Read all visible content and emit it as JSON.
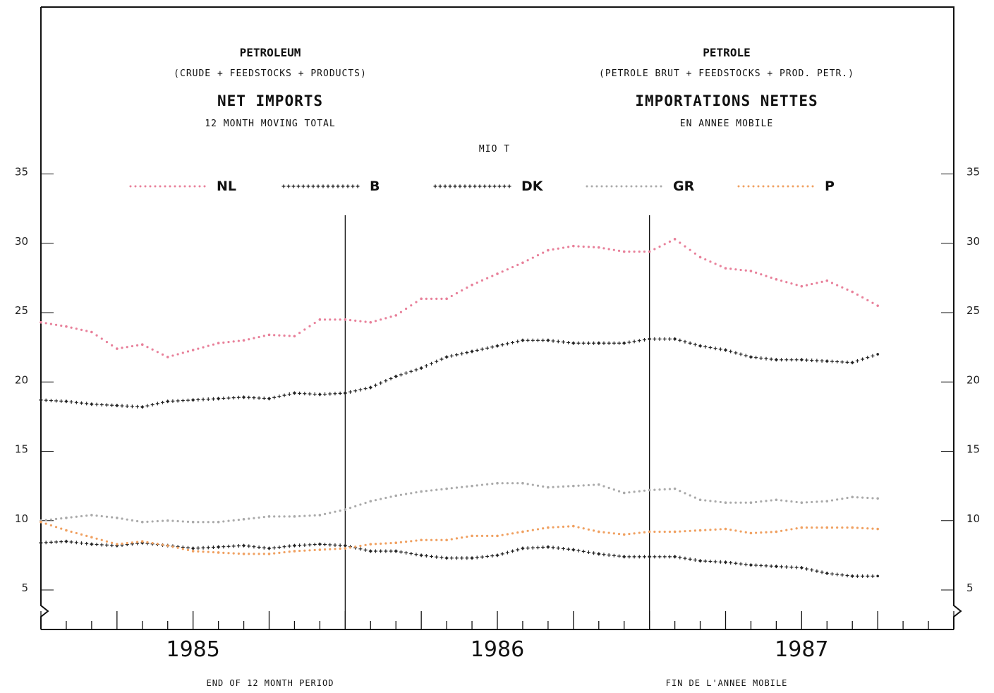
{
  "titles": {
    "left_title": "PETROLEUM",
    "left_sub": "(CRUDE + FEEDSTOCKS + PRODUCTS)",
    "left_main": "NET IMPORTS",
    "left_period": "12 MONTH MOVING TOTAL",
    "right_title": "PETROLE",
    "right_sub": "(PETROLE BRUT + FEEDSTOCKS + PROD. PETR.)",
    "right_main": "IMPORTATIONS NETTES",
    "right_period": "EN ANNEE MOBILE"
  },
  "unit": "MIO T",
  "footer": {
    "left": "END OF 12 MONTH PERIOD",
    "right": "FIN DE L'ANNEE MOBILE"
  },
  "colors": {
    "NL": "#e8809a",
    "B": "#222222",
    "DK": "#222222",
    "GR": "#aaaaaa",
    "P": "#f0a060"
  },
  "chart_data": {
    "type": "line",
    "ylim": [
      3,
      35
    ],
    "yticks": [
      5,
      10,
      15,
      20,
      25,
      30,
      35
    ],
    "xlim": [
      0,
      36
    ],
    "years": [
      {
        "label": "1985",
        "center": 6
      },
      {
        "label": "1986",
        "center": 18
      },
      {
        "label": "1987",
        "center": 30
      }
    ],
    "year_dividers": [
      12,
      24
    ],
    "legend": [
      "NL",
      "B",
      "DK",
      "GR",
      "P"
    ],
    "series": [
      {
        "name": "NL",
        "x": [
          0,
          1,
          2,
          3,
          4,
          5,
          6,
          7,
          8,
          9,
          10,
          11,
          12,
          13,
          14,
          15,
          16,
          17,
          18,
          19,
          20,
          21,
          22,
          23,
          24,
          25,
          26,
          27,
          28,
          29,
          30,
          31,
          32,
          33
        ],
        "values": [
          24.3,
          24.0,
          23.6,
          22.4,
          22.7,
          21.8,
          22.3,
          22.8,
          23.0,
          23.4,
          23.3,
          24.5,
          24.5,
          24.3,
          24.8,
          26.0,
          26.0,
          27.0,
          27.8,
          28.6,
          29.5,
          29.8,
          29.7,
          29.4,
          29.4,
          30.3,
          29.0,
          28.2,
          28.0,
          27.4,
          26.9,
          27.3,
          26.5,
          25.5
        ],
        "style": "dots"
      },
      {
        "name": "B",
        "x": [
          0,
          1,
          2,
          3,
          4,
          5,
          6,
          7,
          8,
          9,
          10,
          11,
          12,
          13,
          14,
          15,
          16,
          17,
          18,
          19,
          20,
          21,
          22,
          23,
          24,
          25,
          26,
          27,
          28,
          29,
          30,
          31,
          32,
          33
        ],
        "values": [
          18.7,
          18.6,
          18.4,
          18.3,
          18.2,
          18.6,
          18.7,
          18.8,
          18.9,
          18.8,
          19.2,
          19.1,
          19.2,
          19.6,
          20.4,
          21.0,
          21.8,
          22.2,
          22.6,
          23.0,
          23.0,
          22.8,
          22.8,
          22.8,
          23.1,
          23.1,
          22.6,
          22.3,
          21.8,
          21.6,
          21.6,
          21.5,
          21.4,
          22.0
        ],
        "style": "cross"
      },
      {
        "name": "DK",
        "x": [
          0,
          1,
          2,
          3,
          4,
          5,
          6,
          7,
          8,
          9,
          10,
          11,
          12,
          13,
          14,
          15,
          16,
          17,
          18,
          19,
          20,
          21,
          22,
          23,
          24,
          25,
          26,
          27,
          28,
          29,
          30,
          31,
          32,
          33
        ],
        "values": [
          8.4,
          8.5,
          8.3,
          8.2,
          8.4,
          8.2,
          8.0,
          8.1,
          8.2,
          8.0,
          8.2,
          8.3,
          8.2,
          7.8,
          7.8,
          7.5,
          7.3,
          7.3,
          7.5,
          8.0,
          8.1,
          7.9,
          7.6,
          7.4,
          7.4,
          7.4,
          7.1,
          7.0,
          6.8,
          6.7,
          6.6,
          6.2,
          6.0,
          6.0
        ],
        "style": "cross"
      },
      {
        "name": "GR",
        "x": [
          0,
          1,
          2,
          3,
          4,
          5,
          6,
          7,
          8,
          9,
          10,
          11,
          12,
          13,
          14,
          15,
          16,
          17,
          18,
          19,
          20,
          21,
          22,
          23,
          24,
          25,
          26,
          27,
          28,
          29,
          30,
          31,
          32,
          33
        ],
        "values": [
          10.0,
          10.2,
          10.4,
          10.2,
          9.9,
          10.0,
          9.9,
          9.9,
          10.1,
          10.3,
          10.3,
          10.4,
          10.8,
          11.4,
          11.8,
          12.1,
          12.3,
          12.5,
          12.7,
          12.7,
          12.4,
          12.5,
          12.6,
          12.0,
          12.2,
          12.3,
          11.5,
          11.3,
          11.3,
          11.5,
          11.3,
          11.4,
          11.7,
          11.6
        ],
        "style": "dots"
      },
      {
        "name": "P",
        "x": [
          0,
          1,
          2,
          3,
          4,
          5,
          6,
          7,
          8,
          9,
          10,
          11,
          12,
          13,
          14,
          15,
          16,
          17,
          18,
          19,
          20,
          21,
          22,
          23,
          24,
          25,
          26,
          27,
          28,
          29,
          30,
          31,
          32,
          33
        ],
        "values": [
          9.9,
          9.3,
          8.8,
          8.3,
          8.5,
          8.2,
          7.8,
          7.7,
          7.6,
          7.6,
          7.8,
          7.9,
          8.0,
          8.3,
          8.4,
          8.6,
          8.6,
          8.9,
          8.9,
          9.2,
          9.5,
          9.6,
          9.2,
          9.0,
          9.2,
          9.2,
          9.3,
          9.4,
          9.1,
          9.2,
          9.5,
          9.5,
          9.5,
          9.4
        ],
        "style": "dots"
      }
    ]
  }
}
